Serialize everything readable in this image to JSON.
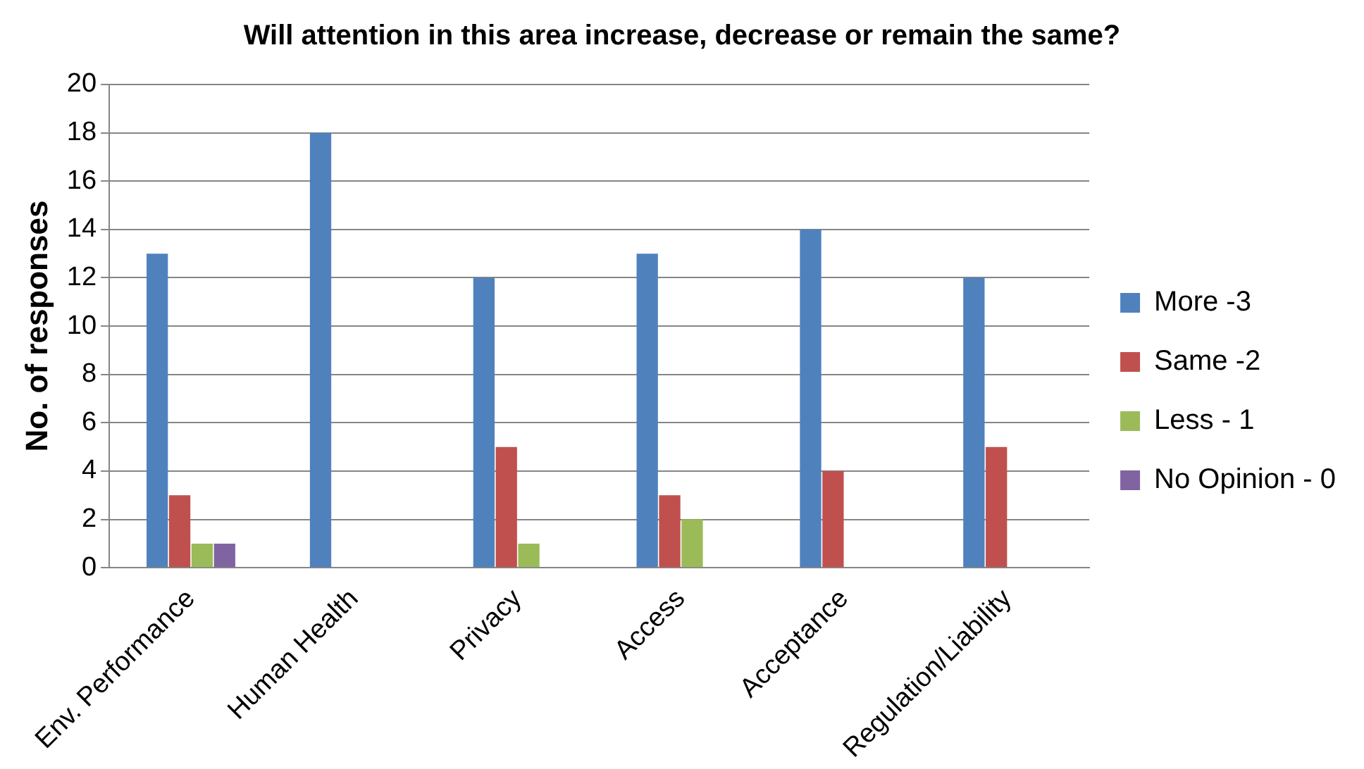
{
  "chart_data": {
    "type": "bar",
    "title": "Will attention in this area increase, decrease or remain the same?",
    "ylabel": "No. of responses",
    "categories": [
      "Env. Performance",
      "Human Health",
      "Privacy",
      "Access",
      "Acceptance",
      "Regulation/Liability"
    ],
    "series": [
      {
        "name": "More -3",
        "color": "#4f81bd",
        "values": [
          13,
          18,
          12,
          13,
          14,
          12
        ]
      },
      {
        "name": "Same -2",
        "color": "#c0504d",
        "values": [
          3,
          0,
          5,
          3,
          4,
          5
        ]
      },
      {
        "name": "Less - 1",
        "color": "#9bbb59",
        "values": [
          1,
          0,
          1,
          2,
          0,
          0
        ]
      },
      {
        "name": "No Opinion - 0",
        "color": "#8064a2",
        "values": [
          1,
          0,
          0,
          0,
          0,
          0
        ]
      }
    ],
    "ylim": [
      0,
      20
    ],
    "yticks": [
      0,
      2,
      4,
      6,
      8,
      10,
      12,
      14,
      16,
      18,
      20
    ],
    "grid": "y",
    "legend": "right"
  }
}
